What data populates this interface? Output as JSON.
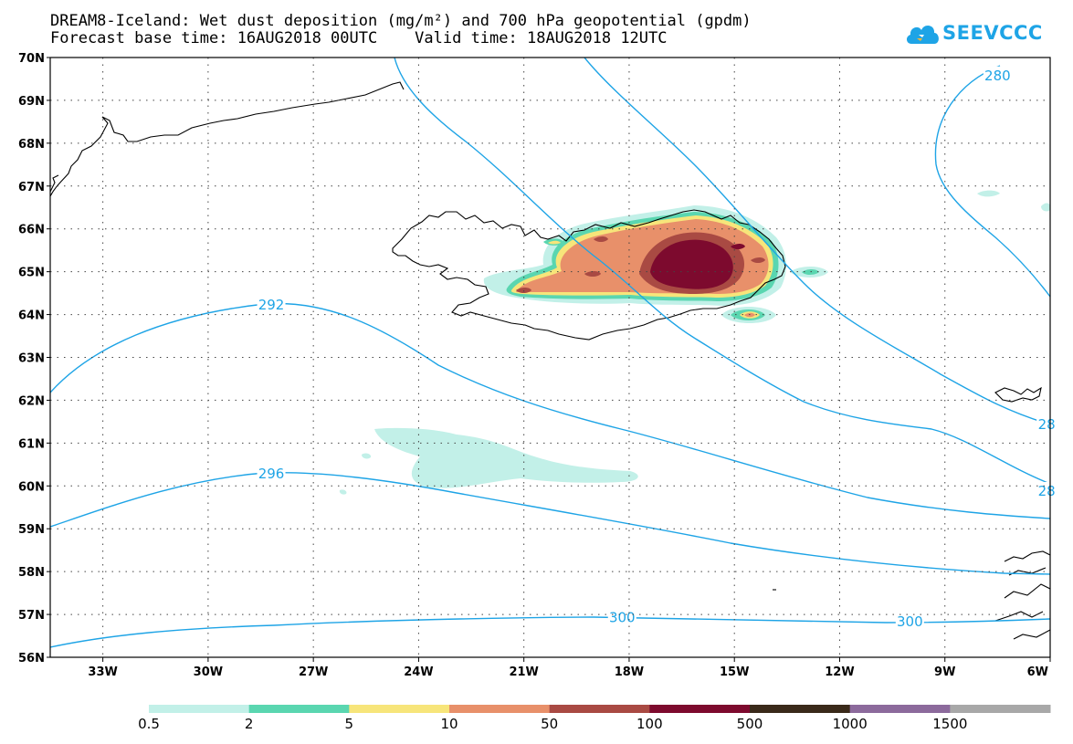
{
  "title": {
    "line1": "DREAM8-Iceland: Wet dust deposition (mg/m²) and 700 hPa geopotential (gpdm)",
    "line2": "Forecast base time: 16AUG2018 00UTC    Valid time: 18AUG2018 12UTC"
  },
  "logo": {
    "text": "SEEVCCC",
    "icon": "cloud-icon",
    "color": "#1ea4e6"
  },
  "map": {
    "lon_range": [
      -34.5,
      -6
    ],
    "lat_range": [
      56,
      70
    ],
    "lat_labels": [
      "70N",
      "69N",
      "68N",
      "67N",
      "66N",
      "65N",
      "64N",
      "63N",
      "62N",
      "61N",
      "60N",
      "59N",
      "58N",
      "57N",
      "56N"
    ],
    "lon_labels": [
      "33W",
      "30W",
      "27W",
      "24W",
      "21W",
      "18W",
      "15W",
      "12W",
      "9W",
      "6W"
    ],
    "lat_values": [
      70,
      69,
      68,
      67,
      66,
      65,
      64,
      63,
      62,
      61,
      60,
      59,
      58,
      57,
      56
    ],
    "lon_values": [
      -33,
      -30,
      -27,
      -24,
      -21,
      -18,
      -15,
      -12,
      -9,
      -6
    ],
    "contour_color": "#1ea4e6",
    "contour_labels": [
      {
        "text": "292",
        "lon": -28.2,
        "lat": 64.25
      },
      {
        "text": "296",
        "lon": -28.2,
        "lat": 60.3
      },
      {
        "text": "300",
        "lon": -18.2,
        "lat": 56.95
      },
      {
        "text": "300",
        "lon": -10.0,
        "lat": 56.85
      },
      {
        "text": "280",
        "lon": -7.5,
        "lat": 69.6
      },
      {
        "text": "28",
        "lon": -6.1,
        "lat": 61.45
      },
      {
        "text": "28",
        "lon": -6.1,
        "lat": 59.9
      }
    ]
  },
  "colorbar": {
    "colors": [
      "#c2f0e8",
      "#5ad6b0",
      "#f7e57a",
      "#e8906a",
      "#a94a43",
      "#7d0a2e",
      "#3a2a1a",
      "#8c6a9c",
      "#a8a8a8"
    ],
    "labels": [
      "0.5",
      "2",
      "5",
      "10",
      "50",
      "100",
      "500",
      "1000",
      "1500"
    ]
  }
}
